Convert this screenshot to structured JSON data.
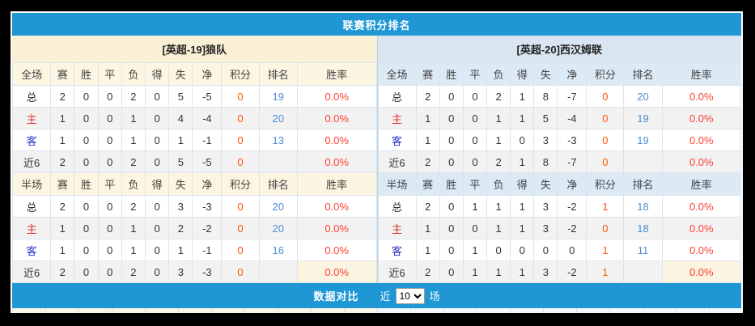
{
  "page": {
    "title": "联赛积分排名",
    "footer": {
      "compare_label": "数据对比",
      "recent_prefix": "近",
      "recent_value": "10",
      "recent_options": [
        "10"
      ],
      "unit_suffix": "场"
    }
  },
  "columns": [
    "赛",
    "胜",
    "平",
    "负",
    "得",
    "失",
    "净",
    "积分",
    "排名",
    "胜率"
  ],
  "teams": [
    {
      "name": "[英超-19]狼队",
      "theme": "cream",
      "sections": [
        {
          "scope": "全场",
          "rows": [
            {
              "label": "总",
              "style": "total",
              "stats": [
                "2",
                "0",
                "0",
                "2",
                "0",
                "5",
                "-5"
              ],
              "points": "0",
              "rank": "19",
              "win_rate": "0.0%"
            },
            {
              "label": "主",
              "style": "home",
              "stats": [
                "1",
                "0",
                "0",
                "1",
                "0",
                "4",
                "-4"
              ],
              "points": "0",
              "rank": "20",
              "win_rate": "0.0%"
            },
            {
              "label": "客",
              "style": "away",
              "stats": [
                "1",
                "0",
                "0",
                "1",
                "0",
                "1",
                "-1"
              ],
              "points": "0",
              "rank": "13",
              "win_rate": "0.0%"
            },
            {
              "label": "近6",
              "style": "recent",
              "stats": [
                "2",
                "0",
                "0",
                "2",
                "0",
                "5",
                "-5"
              ],
              "points": "0",
              "rank": "",
              "win_rate": "0.0%"
            }
          ]
        },
        {
          "scope": "半场",
          "rows": [
            {
              "label": "总",
              "style": "total",
              "stats": [
                "2",
                "0",
                "0",
                "2",
                "0",
                "3",
                "-3"
              ],
              "points": "0",
              "rank": "20",
              "win_rate": "0.0%"
            },
            {
              "label": "主",
              "style": "home",
              "stats": [
                "1",
                "0",
                "0",
                "1",
                "0",
                "2",
                "-2"
              ],
              "points": "0",
              "rank": "20",
              "win_rate": "0.0%"
            },
            {
              "label": "客",
              "style": "away",
              "stats": [
                "1",
                "0",
                "0",
                "1",
                "0",
                "1",
                "-1"
              ],
              "points": "0",
              "rank": "16",
              "win_rate": "0.0%"
            },
            {
              "label": "近6",
              "style": "recent",
              "stats": [
                "2",
                "0",
                "0",
                "2",
                "0",
                "3",
                "-3"
              ],
              "points": "0",
              "rank": "",
              "win_rate": "0.0%",
              "highlight_rate": true
            }
          ]
        }
      ]
    },
    {
      "name": "[英超-20]西汉姆联",
      "theme": "blue",
      "sections": [
        {
          "scope": "全场",
          "rows": [
            {
              "label": "总",
              "style": "total",
              "stats": [
                "2",
                "0",
                "0",
                "2",
                "1",
                "8",
                "-7"
              ],
              "points": "0",
              "rank": "20",
              "win_rate": "0.0%"
            },
            {
              "label": "主",
              "style": "home",
              "stats": [
                "1",
                "0",
                "0",
                "1",
                "1",
                "5",
                "-4"
              ],
              "points": "0",
              "rank": "19",
              "win_rate": "0.0%"
            },
            {
              "label": "客",
              "style": "away",
              "stats": [
                "1",
                "0",
                "0",
                "1",
                "0",
                "3",
                "-3"
              ],
              "points": "0",
              "rank": "19",
              "win_rate": "0.0%"
            },
            {
              "label": "近6",
              "style": "recent",
              "stats": [
                "2",
                "0",
                "0",
                "2",
                "1",
                "8",
                "-7"
              ],
              "points": "0",
              "rank": "",
              "win_rate": "0.0%"
            }
          ]
        },
        {
          "scope": "半场",
          "rows": [
            {
              "label": "总",
              "style": "total",
              "stats": [
                "2",
                "0",
                "1",
                "1",
                "1",
                "3",
                "-2"
              ],
              "points": "1",
              "rank": "18",
              "win_rate": "0.0%"
            },
            {
              "label": "主",
              "style": "home",
              "stats": [
                "1",
                "0",
                "0",
                "1",
                "1",
                "3",
                "-2"
              ],
              "points": "0",
              "rank": "18",
              "win_rate": "0.0%"
            },
            {
              "label": "客",
              "style": "away",
              "stats": [
                "1",
                "0",
                "1",
                "0",
                "0",
                "0",
                "0"
              ],
              "points": "1",
              "rank": "11",
              "win_rate": "0.0%"
            },
            {
              "label": "近6",
              "style": "recent",
              "stats": [
                "2",
                "0",
                "1",
                "1",
                "1",
                "3",
                "-2"
              ],
              "points": "1",
              "rank": "",
              "win_rate": "0.0%",
              "highlight_rate": true
            }
          ]
        }
      ]
    }
  ],
  "colors": {
    "bar_blue": "#1f97d5",
    "team_header_cream": "#faf0d5",
    "team_header_blue": "#d9e6f2",
    "col_header_cream": "#fcf5e2",
    "col_header_blue": "#dceaf5",
    "row_alt": "#f2f2f2",
    "points_orange": "#ff5500",
    "rank_blue": "#4d8fd6",
    "rate_red": "#ff4136",
    "home_red": "#e03131",
    "away_blue": "#2b36c9",
    "highlight_cream": "#fbf4e0"
  }
}
